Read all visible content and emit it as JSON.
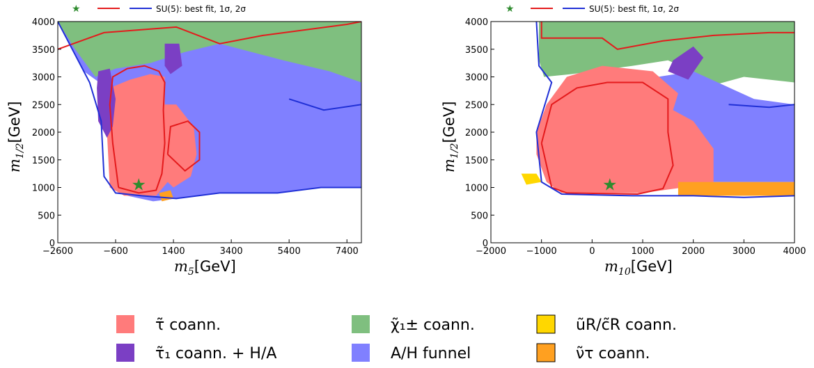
{
  "legend_top": {
    "text": "SU(5): best fit, 1σ, 2σ",
    "star_color": "#2e8b2e",
    "line1_color": "#e41a1c",
    "line2_color": "#1f2fd6"
  },
  "legend_bottom": [
    {
      "key": "stau",
      "label": "τ̃ coann.",
      "color": "#ff7b7b"
    },
    {
      "key": "stau1",
      "label": "τ̃₁ coann. + H/A",
      "color": "#7b3fc4"
    },
    {
      "key": "chargino",
      "label": "χ̃₁± coann.",
      "color": "#7fbf7f"
    },
    {
      "key": "funnel",
      "label": "A/H funnel",
      "color": "#8080ff"
    },
    {
      "key": "squark",
      "label": "ũR/c̃R coann.",
      "color": "#ffd700"
    },
    {
      "key": "sneutrino",
      "label": "ν̃τ coann.",
      "color": "#ffa020"
    }
  ],
  "chart_data": [
    {
      "type": "area",
      "xlabel": "m_5[GeV]",
      "ylabel": "m_{1/2}[GeV]",
      "xlim": [
        -2600,
        7900
      ],
      "ylim": [
        0,
        4000
      ],
      "xticks": [
        -2600,
        -600,
        1400,
        3400,
        5400,
        7400
      ],
      "xtick_labels": [
        "−2600",
        "−600",
        "1400",
        "3400",
        "5400",
        "7400"
      ],
      "yticks": [
        0,
        500,
        1000,
        1500,
        2000,
        2500,
        3000,
        3500,
        4000
      ],
      "best_fit": {
        "x": 200,
        "y": 1050
      },
      "regions": [
        {
          "key": "funnel",
          "points": [
            [
              -2600,
              4000
            ],
            [
              7900,
              4000
            ],
            [
              7900,
              1000
            ],
            [
              6500,
              1000
            ],
            [
              5000,
              900
            ],
            [
              3000,
              900
            ],
            [
              1500,
              800
            ],
            [
              700,
              750
            ],
            [
              -200,
              850
            ],
            [
              -600,
              1000
            ],
            [
              -900,
              2800
            ],
            [
              -1700,
              3100
            ],
            [
              -2600,
              4000
            ]
          ]
        },
        {
          "key": "chargino",
          "points": [
            [
              -2600,
              4000
            ],
            [
              7900,
              4000
            ],
            [
              7900,
              2900
            ],
            [
              6800,
              3100
            ],
            [
              5200,
              3300
            ],
            [
              3000,
              3600
            ],
            [
              1800,
              3450
            ],
            [
              600,
              3250
            ],
            [
              -600,
              3150
            ],
            [
              -1300,
              3000
            ],
            [
              -2000,
              3500
            ],
            [
              -2600,
              4000
            ]
          ]
        },
        {
          "key": "stau",
          "points": [
            [
              -800,
              1000
            ],
            [
              -300,
              850
            ],
            [
              800,
              850
            ],
            [
              1200,
              1100
            ],
            [
              1400,
              1000
            ],
            [
              2000,
              1200
            ],
            [
              2200,
              1600
            ],
            [
              2100,
              2100
            ],
            [
              1500,
              2500
            ],
            [
              1100,
              2500
            ],
            [
              1100,
              3000
            ],
            [
              600,
              3050
            ],
            [
              -100,
              2950
            ],
            [
              -800,
              2800
            ],
            [
              -900,
              2000
            ],
            [
              -800,
              1000
            ]
          ]
        },
        {
          "key": "stau1",
          "points": [
            [
              -1200,
              3100
            ],
            [
              -800,
              3150
            ],
            [
              -600,
              2600
            ],
            [
              -700,
              2100
            ],
            [
              -900,
              1900
            ],
            [
              -1200,
              2200
            ],
            [
              -1250,
              2800
            ]
          ]
        },
        {
          "key": "stau1",
          "points": [
            [
              1100,
              3600
            ],
            [
              1600,
              3600
            ],
            [
              1700,
              3200
            ],
            [
              1300,
              3050
            ],
            [
              1100,
              3200
            ]
          ]
        },
        {
          "key": "sneutrino",
          "points": [
            [
              900,
              900
            ],
            [
              1300,
              950
            ],
            [
              1400,
              800
            ],
            [
              1000,
              750
            ]
          ]
        }
      ],
      "contours": [
        {
          "sigma": "1σ",
          "points": [
            [
              -500,
              1000
            ],
            [
              200,
              900
            ],
            [
              800,
              950
            ],
            [
              1000,
              1250
            ],
            [
              1100,
              1800
            ],
            [
              1050,
              2400
            ],
            [
              1100,
              2900
            ],
            [
              900,
              3100
            ],
            [
              400,
              3200
            ],
            [
              -200,
              3150
            ],
            [
              -700,
              3000
            ],
            [
              -800,
              2500
            ],
            [
              -700,
              1800
            ],
            [
              -500,
              1000
            ]
          ]
        },
        {
          "sigma": "1σ",
          "points": [
            [
              1200,
              1600
            ],
            [
              1800,
              1300
            ],
            [
              2300,
              1500
            ],
            [
              2300,
              2000
            ],
            [
              1900,
              2200
            ],
            [
              1300,
              2100
            ],
            [
              1200,
              1600
            ]
          ]
        },
        {
          "sigma": "1σ",
          "points": [
            [
              -2600,
              3500
            ],
            [
              -1000,
              3800
            ],
            [
              1500,
              3900
            ],
            [
              3000,
              3600
            ],
            [
              4500,
              3750
            ],
            [
              7400,
              3950
            ],
            [
              7900,
              4000
            ]
          ]
        },
        {
          "sigma": "2σ",
          "points": [
            [
              -2600,
              4000
            ],
            [
              -2000,
              3400
            ],
            [
              -1500,
              2900
            ],
            [
              -1100,
              2200
            ],
            [
              -1000,
              1200
            ],
            [
              -600,
              900
            ],
            [
              300,
              850
            ],
            [
              1500,
              800
            ],
            [
              3000,
              900
            ],
            [
              5000,
              900
            ],
            [
              6500,
              1000
            ],
            [
              7900,
              1000
            ]
          ]
        },
        {
          "sigma": "2σ",
          "points": [
            [
              5400,
              2600
            ],
            [
              6600,
              2400
            ],
            [
              7900,
              2500
            ]
          ]
        }
      ]
    },
    {
      "type": "area",
      "xlabel": "m_{10}[GeV]",
      "ylabel": "m_{1/2}[GeV]",
      "xlim": [
        -2000,
        4000
      ],
      "ylim": [
        0,
        4000
      ],
      "xticks": [
        -2000,
        -1000,
        0,
        1000,
        2000,
        3000,
        4000
      ],
      "xtick_labels": [
        "−2000",
        "−1000",
        "0",
        "1000",
        "2000",
        "3000",
        "4000"
      ],
      "yticks": [
        0,
        500,
        1000,
        1500,
        2000,
        2500,
        3000,
        3500,
        4000
      ],
      "best_fit": {
        "x": 350,
        "y": 1050
      },
      "regions": [
        {
          "key": "chargino",
          "points": [
            [
              -1050,
              4000
            ],
            [
              4000,
              4000
            ],
            [
              4000,
              2900
            ],
            [
              3000,
              3000
            ],
            [
              2400,
              2850
            ],
            [
              2000,
              3100
            ],
            [
              1500,
              3300
            ],
            [
              800,
              3200
            ],
            [
              -400,
              3050
            ],
            [
              -950,
              3000
            ],
            [
              -1050,
              3300
            ]
          ]
        },
        {
          "key": "funnel",
          "points": [
            [
              1300,
              3000
            ],
            [
              2000,
              3100
            ],
            [
              2600,
              2850
            ],
            [
              3200,
              2600
            ],
            [
              4000,
              2500
            ],
            [
              4000,
              1100
            ],
            [
              1800,
              1100
            ],
            [
              1700,
              1600
            ],
            [
              1400,
              2000
            ],
            [
              1300,
              3000
            ]
          ]
        },
        {
          "key": "stau",
          "points": [
            [
              -1100,
              1600
            ],
            [
              -900,
              1100
            ],
            [
              -600,
              900
            ],
            [
              1000,
              900
            ],
            [
              1800,
              1000
            ],
            [
              2400,
              1100
            ],
            [
              2400,
              1700
            ],
            [
              2000,
              2200
            ],
            [
              1600,
              2400
            ],
            [
              1700,
              2700
            ],
            [
              1200,
              3100
            ],
            [
              200,
              3200
            ],
            [
              -500,
              3000
            ],
            [
              -900,
              2500
            ],
            [
              -1100,
              2000
            ],
            [
              -1100,
              1600
            ]
          ]
        },
        {
          "key": "stau1",
          "points": [
            [
              1600,
              3300
            ],
            [
              2000,
              3550
            ],
            [
              2200,
              3350
            ],
            [
              1900,
              2950
            ],
            [
              1500,
              3100
            ]
          ]
        },
        {
          "key": "sneutrino",
          "points": [
            [
              1700,
              1100
            ],
            [
              4000,
              1100
            ],
            [
              4000,
              850
            ],
            [
              1700,
              850
            ]
          ]
        },
        {
          "key": "squark",
          "points": [
            [
              -1400,
              1250
            ],
            [
              -1100,
              1250
            ],
            [
              -1000,
              1100
            ],
            [
              -1300,
              1050
            ]
          ]
        }
      ],
      "contours": [
        {
          "sigma": "1σ",
          "points": [
            [
              -1000,
              1800
            ],
            [
              -800,
              1000
            ],
            [
              -500,
              900
            ],
            [
              900,
              880
            ],
            [
              1400,
              980
            ],
            [
              1600,
              1400
            ],
            [
              1500,
              2000
            ],
            [
              1500,
              2600
            ],
            [
              1000,
              2900
            ],
            [
              300,
              2900
            ],
            [
              -300,
              2800
            ],
            [
              -800,
              2500
            ],
            [
              -1000,
              1800
            ]
          ]
        },
        {
          "sigma": "1σ",
          "points": [
            [
              -1000,
              4000
            ],
            [
              -1000,
              3700
            ],
            [
              200,
              3700
            ],
            [
              500,
              3500
            ],
            [
              1400,
              3650
            ],
            [
              2400,
              3750
            ],
            [
              3500,
              3800
            ],
            [
              4000,
              3800
            ]
          ]
        },
        {
          "sigma": "2σ",
          "points": [
            [
              -1100,
              4000
            ],
            [
              -1050,
              3200
            ],
            [
              -800,
              2900
            ],
            [
              -1100,
              2000
            ],
            [
              -1000,
              1100
            ],
            [
              -600,
              880
            ],
            [
              800,
              850
            ],
            [
              2000,
              850
            ],
            [
              3000,
              820
            ],
            [
              4000,
              850
            ]
          ]
        },
        {
          "sigma": "2σ",
          "points": [
            [
              2700,
              2500
            ],
            [
              3500,
              2450
            ],
            [
              4000,
              2500
            ]
          ]
        }
      ]
    }
  ]
}
